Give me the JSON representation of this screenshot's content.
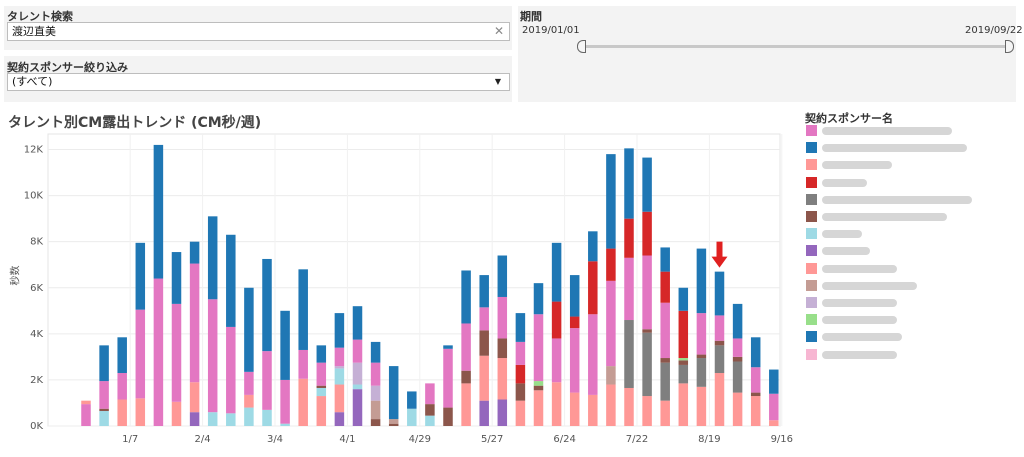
{
  "filters": {
    "talent_search": {
      "label": "タレント検索",
      "value": "渡辺直美"
    },
    "sponsor_filter": {
      "label": "契約スポンサー絞り込み",
      "value": "(すべて)"
    },
    "period": {
      "label": "期間",
      "start": "2019/01/01",
      "end": "2019/09/22"
    }
  },
  "chart_data": {
    "type": "bar",
    "stacked": true,
    "title": "タレント別CM露出トレンド (CM秒/週)",
    "ylabel": "秒数",
    "ylim": [
      0,
      12500
    ],
    "y_ticks": [
      "0K",
      "2K",
      "4K",
      "6K",
      "8K",
      "10K",
      "12K"
    ],
    "x_tick_labels": [
      {
        "week": 3,
        "label": "1/7"
      },
      {
        "week": 7,
        "label": "2/4"
      },
      {
        "week": 11,
        "label": "3/4"
      },
      {
        "week": 15,
        "label": "4/1"
      },
      {
        "week": 19,
        "label": "4/29"
      },
      {
        "week": 23,
        "label": "5/27"
      },
      {
        "week": 27,
        "label": "6/24"
      },
      {
        "week": 31,
        "label": "7/22"
      },
      {
        "week": 35,
        "label": "8/19"
      },
      {
        "week": 39,
        "label": "9/16"
      }
    ],
    "grid": true,
    "series_colors": [
      "#e377c2",
      "#1f77b4",
      "#ff9896",
      "#d62728",
      "#7f7f7f",
      "#8c564b",
      "#9edae5",
      "#9467bd",
      "#ff9896",
      "#c49c94",
      "#c5b0d5",
      "#98df8a",
      "#1f77b4",
      "#f7b6d2"
    ],
    "weeks": [
      [
        {
          "s": 0,
          "v": 950
        },
        {
          "s": 2,
          "v": 150
        }
      ],
      [
        {
          "s": 8,
          "v": 0
        },
        {
          "s": 6,
          "v": 650
        },
        {
          "s": 5,
          "v": 100
        },
        {
          "s": 0,
          "v": 1200
        },
        {
          "s": 1,
          "v": 1550
        }
      ],
      [
        {
          "s": 8,
          "v": 1150
        },
        {
          "s": 0,
          "v": 1150
        },
        {
          "s": 1,
          "v": 1550
        }
      ],
      [
        {
          "s": 8,
          "v": 1200
        },
        {
          "s": 0,
          "v": 3850
        },
        {
          "s": 1,
          "v": 2900
        }
      ],
      [
        {
          "s": 8,
          "v": 0
        },
        {
          "s": 0,
          "v": 6400
        },
        {
          "s": 1,
          "v": 5800
        }
      ],
      [
        {
          "s": 8,
          "v": 1050
        },
        {
          "s": 0,
          "v": 4250
        },
        {
          "s": 1,
          "v": 2250
        }
      ],
      [
        {
          "s": 7,
          "v": 600
        },
        {
          "s": 8,
          "v": 1300
        },
        {
          "s": 0,
          "v": 5150
        },
        {
          "s": 1,
          "v": 950
        }
      ],
      [
        {
          "s": 6,
          "v": 600
        },
        {
          "s": 8,
          "v": 0
        },
        {
          "s": 0,
          "v": 4900
        },
        {
          "s": 1,
          "v": 3600
        }
      ],
      [
        {
          "s": 6,
          "v": 550
        },
        {
          "s": 0,
          "v": 3750
        },
        {
          "s": 1,
          "v": 4000
        }
      ],
      [
        {
          "s": 6,
          "v": 800
        },
        {
          "s": 8,
          "v": 550
        },
        {
          "s": 0,
          "v": 1000
        },
        {
          "s": 1,
          "v": 3650
        }
      ],
      [
        {
          "s": 6,
          "v": 700
        },
        {
          "s": 8,
          "v": 0
        },
        {
          "s": 0,
          "v": 2550
        },
        {
          "s": 1,
          "v": 4000
        }
      ],
      [
        {
          "s": 6,
          "v": 100
        },
        {
          "s": 8,
          "v": 0
        },
        {
          "s": 0,
          "v": 1900
        },
        {
          "s": 1,
          "v": 3000
        }
      ],
      [
        {
          "s": 8,
          "v": 2050
        },
        {
          "s": 0,
          "v": 1250
        },
        {
          "s": 1,
          "v": 3500
        }
      ],
      [
        {
          "s": 8,
          "v": 1300
        },
        {
          "s": 6,
          "v": 350
        },
        {
          "s": 5,
          "v": 100
        },
        {
          "s": 0,
          "v": 1000
        },
        {
          "s": 1,
          "v": 750
        }
      ],
      [
        {
          "s": 7,
          "v": 600
        },
        {
          "s": 8,
          "v": 1200
        },
        {
          "s": 6,
          "v": 700
        },
        {
          "s": 10,
          "v": 100
        },
        {
          "s": 0,
          "v": 800
        },
        {
          "s": 1,
          "v": 1500
        }
      ],
      [
        {
          "s": 7,
          "v": 1600
        },
        {
          "s": 6,
          "v": 200
        },
        {
          "s": 10,
          "v": 950
        },
        {
          "s": 0,
          "v": 1000
        },
        {
          "s": 1,
          "v": 1450
        }
      ],
      [
        {
          "s": 5,
          "v": 300
        },
        {
          "s": 9,
          "v": 800
        },
        {
          "s": 10,
          "v": 650
        },
        {
          "s": 0,
          "v": 1000
        },
        {
          "s": 1,
          "v": 900
        }
      ],
      [
        {
          "s": 5,
          "v": 100
        },
        {
          "s": 9,
          "v": 200
        },
        {
          "s": 10,
          "v": 0
        },
        {
          "s": 1,
          "v": 2300
        }
      ],
      [
        {
          "s": 6,
          "v": 750
        },
        {
          "s": 1,
          "v": 750
        }
      ],
      [
        {
          "s": 6,
          "v": 450
        },
        {
          "s": 5,
          "v": 500
        },
        {
          "s": 0,
          "v": 900
        }
      ],
      [
        {
          "s": 5,
          "v": 800
        },
        {
          "s": 0,
          "v": 2550
        },
        {
          "s": 8,
          "v": 0
        },
        {
          "s": 1,
          "v": 150
        }
      ],
      [
        {
          "s": 8,
          "v": 1850
        },
        {
          "s": 5,
          "v": 550
        },
        {
          "s": 0,
          "v": 2050
        },
        {
          "s": 1,
          "v": 2300
        }
      ],
      [
        {
          "s": 7,
          "v": 1100
        },
        {
          "s": 8,
          "v": 1950
        },
        {
          "s": 5,
          "v": 1100
        },
        {
          "s": 0,
          "v": 1000
        },
        {
          "s": 1,
          "v": 1400
        }
      ],
      [
        {
          "s": 7,
          "v": 1150
        },
        {
          "s": 8,
          "v": 1800
        },
        {
          "s": 5,
          "v": 850
        },
        {
          "s": 0,
          "v": 1800
        },
        {
          "s": 1,
          "v": 1800
        }
      ],
      [
        {
          "s": 8,
          "v": 1100
        },
        {
          "s": 5,
          "v": 750
        },
        {
          "s": 3,
          "v": 800
        },
        {
          "s": 0,
          "v": 1000
        },
        {
          "s": 1,
          "v": 1250
        }
      ],
      [
        {
          "s": 8,
          "v": 1550
        },
        {
          "s": 5,
          "v": 200
        },
        {
          "s": 11,
          "v": 200
        },
        {
          "s": 0,
          "v": 2900
        },
        {
          "s": 1,
          "v": 1350
        }
      ],
      [
        {
          "s": 8,
          "v": 1900
        },
        {
          "s": 0,
          "v": 1900
        },
        {
          "s": 3,
          "v": 1600
        },
        {
          "s": 1,
          "v": 2550
        }
      ],
      [
        {
          "s": 8,
          "v": 1450
        },
        {
          "s": 0,
          "v": 2800
        },
        {
          "s": 3,
          "v": 500
        },
        {
          "s": 1,
          "v": 1800
        }
      ],
      [
        {
          "s": 8,
          "v": 1350
        },
        {
          "s": 0,
          "v": 3500
        },
        {
          "s": 3,
          "v": 2300
        },
        {
          "s": 1,
          "v": 1300
        }
      ],
      [
        {
          "s": 8,
          "v": 1800
        },
        {
          "s": 9,
          "v": 800
        },
        {
          "s": 0,
          "v": 3700
        },
        {
          "s": 3,
          "v": 1400
        },
        {
          "s": 1,
          "v": 4100
        }
      ],
      [
        {
          "s": 8,
          "v": 1650
        },
        {
          "s": 4,
          "v": 2950
        },
        {
          "s": 0,
          "v": 2700
        },
        {
          "s": 3,
          "v": 1700
        },
        {
          "s": 1,
          "v": 3050
        }
      ],
      [
        {
          "s": 8,
          "v": 1300
        },
        {
          "s": 4,
          "v": 2750
        },
        {
          "s": 5,
          "v": 150
        },
        {
          "s": 0,
          "v": 3200
        },
        {
          "s": 3,
          "v": 1900
        },
        {
          "s": 1,
          "v": 2350
        }
      ],
      [
        {
          "s": 8,
          "v": 1100
        },
        {
          "s": 4,
          "v": 1650
        },
        {
          "s": 5,
          "v": 200
        },
        {
          "s": 0,
          "v": 2400
        },
        {
          "s": 3,
          "v": 1350
        },
        {
          "s": 1,
          "v": 1050
        }
      ],
      [
        {
          "s": 8,
          "v": 1850
        },
        {
          "s": 4,
          "v": 800
        },
        {
          "s": 5,
          "v": 200
        },
        {
          "s": 11,
          "v": 100
        },
        {
          "s": 3,
          "v": 2050
        },
        {
          "s": 1,
          "v": 1000
        }
      ],
      [
        {
          "s": 8,
          "v": 1700
        },
        {
          "s": 4,
          "v": 1250
        },
        {
          "s": 5,
          "v": 150
        },
        {
          "s": 0,
          "v": 1800
        },
        {
          "s": 1,
          "v": 2800
        }
      ],
      [
        {
          "s": 8,
          "v": 2300
        },
        {
          "s": 4,
          "v": 1200
        },
        {
          "s": 5,
          "v": 200
        },
        {
          "s": 0,
          "v": 1100
        },
        {
          "s": 1,
          "v": 1900
        }
      ],
      [
        {
          "s": 8,
          "v": 1450
        },
        {
          "s": 4,
          "v": 1350
        },
        {
          "s": 5,
          "v": 200
        },
        {
          "s": 0,
          "v": 800
        },
        {
          "s": 1,
          "v": 1500
        }
      ],
      [
        {
          "s": 8,
          "v": 1300
        },
        {
          "s": 5,
          "v": 150
        },
        {
          "s": 0,
          "v": 1100
        },
        {
          "s": 1,
          "v": 1300
        }
      ],
      [
        {
          "s": 8,
          "v": 250
        },
        {
          "s": 0,
          "v": 1150
        },
        {
          "s": 1,
          "v": 1050
        }
      ]
    ]
  },
  "legend": {
    "title": "契約スポンサー名",
    "colors": [
      "#e377c2",
      "#1f77b4",
      "#ff9896",
      "#d62728",
      "#7f7f7f",
      "#8c564b",
      "#9edae5",
      "#9467bd",
      "#ff9896",
      "#c49c94",
      "#c5b0d5",
      "#98df8a",
      "#1f77b4",
      "#f7b6d2"
    ]
  },
  "annotation": {
    "type": "down-arrow",
    "week": 36,
    "color": "#e02020"
  }
}
